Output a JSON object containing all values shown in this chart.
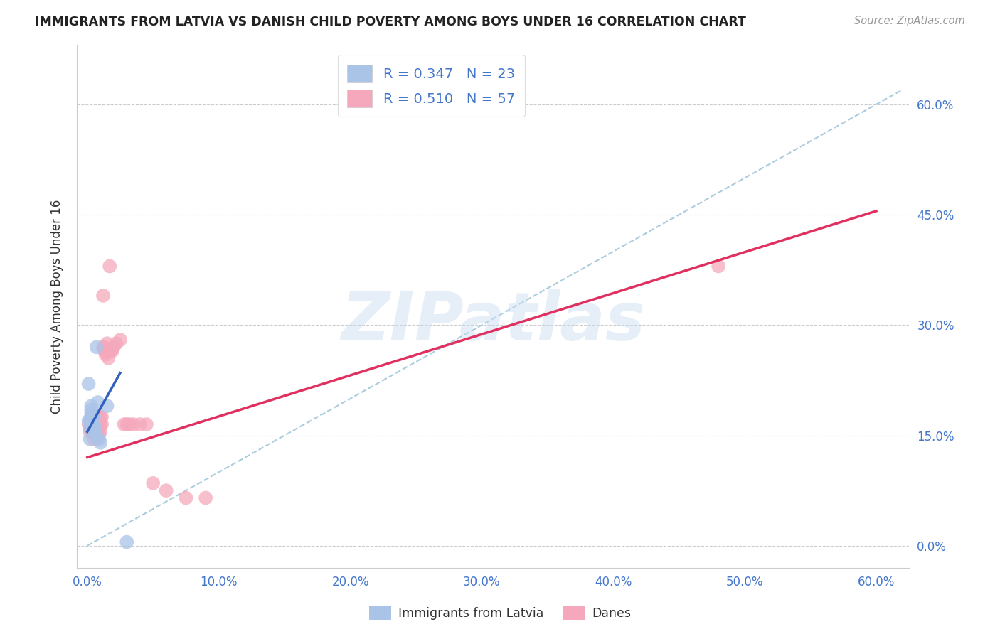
{
  "title": "IMMIGRANTS FROM LATVIA VS DANISH CHILD POVERTY AMONG BOYS UNDER 16 CORRELATION CHART",
  "source": "Source: ZipAtlas.com",
  "ylabel_label": "Child Poverty Among Boys Under 16",
  "legend_label1": "Immigrants from Latvia",
  "legend_label2": "Danes",
  "R1": 0.347,
  "N1": 23,
  "R2": 0.51,
  "N2": 57,
  "color_blue": "#aac4e8",
  "color_pink": "#f5a8bc",
  "line_blue": "#3060c0",
  "line_pink": "#e03060",
  "line_dashed_color": "#aaccdd",
  "watermark": "ZIPatlas",
  "xlim": [
    0.0,
    0.6
  ],
  "ylim": [
    0.0,
    0.65
  ],
  "xtick_vals": [
    0.0,
    0.1,
    0.2,
    0.3,
    0.4,
    0.5,
    0.6
  ],
  "ytick_vals": [
    0.0,
    0.15,
    0.3,
    0.45,
    0.6
  ],
  "blue_x": [
    0.001,
    0.001,
    0.002,
    0.002,
    0.002,
    0.003,
    0.003,
    0.003,
    0.003,
    0.004,
    0.004,
    0.004,
    0.005,
    0.005,
    0.005,
    0.006,
    0.006,
    0.007,
    0.008,
    0.009,
    0.01,
    0.015,
    0.03
  ],
  "blue_y": [
    0.22,
    0.17,
    0.17,
    0.16,
    0.145,
    0.19,
    0.185,
    0.18,
    0.175,
    0.175,
    0.17,
    0.165,
    0.175,
    0.165,
    0.155,
    0.16,
    0.155,
    0.27,
    0.195,
    0.145,
    0.14,
    0.19,
    0.005
  ],
  "pink_x": [
    0.001,
    0.002,
    0.002,
    0.003,
    0.003,
    0.003,
    0.004,
    0.004,
    0.004,
    0.005,
    0.005,
    0.005,
    0.005,
    0.006,
    0.006,
    0.006,
    0.007,
    0.007,
    0.007,
    0.007,
    0.008,
    0.008,
    0.008,
    0.009,
    0.009,
    0.01,
    0.01,
    0.01,
    0.011,
    0.011,
    0.012,
    0.012,
    0.013,
    0.013,
    0.014,
    0.014,
    0.015,
    0.015,
    0.016,
    0.016,
    0.017,
    0.018,
    0.019,
    0.02,
    0.022,
    0.025,
    0.028,
    0.03,
    0.032,
    0.035,
    0.04,
    0.045,
    0.05,
    0.06,
    0.075,
    0.09,
    0.48
  ],
  "pink_y": [
    0.165,
    0.16,
    0.155,
    0.175,
    0.165,
    0.155,
    0.175,
    0.165,
    0.155,
    0.175,
    0.165,
    0.155,
    0.145,
    0.175,
    0.165,
    0.155,
    0.175,
    0.165,
    0.155,
    0.145,
    0.175,
    0.165,
    0.155,
    0.165,
    0.155,
    0.175,
    0.165,
    0.155,
    0.175,
    0.165,
    0.34,
    0.27,
    0.27,
    0.265,
    0.265,
    0.26,
    0.275,
    0.265,
    0.265,
    0.255,
    0.38,
    0.265,
    0.265,
    0.27,
    0.275,
    0.28,
    0.165,
    0.165,
    0.165,
    0.165,
    0.165,
    0.165,
    0.085,
    0.075,
    0.065,
    0.065,
    0.38
  ],
  "blue_line_x": [
    0.0,
    0.025
  ],
  "blue_line_y_start": 0.155,
  "blue_line_y_end": 0.235,
  "pink_line_x": [
    0.0,
    0.6
  ],
  "pink_line_y_start": 0.12,
  "pink_line_y_end": 0.455
}
